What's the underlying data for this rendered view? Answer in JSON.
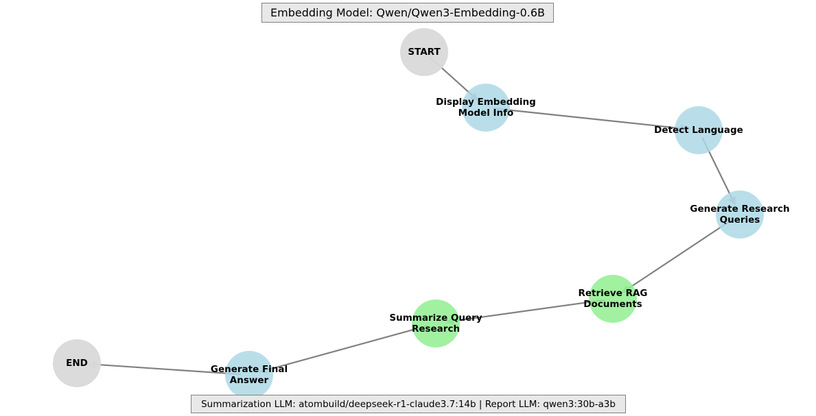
{
  "title": "Embedding Model: Qwen/Qwen3-Embedding-0.6B",
  "footer": "Summarization LLM: atombuild/deepseek-r1-claude3.7:14b | Report LLM: qwen3:30b-a3b",
  "colors": {
    "terminal": "#d9d9d9",
    "process": "#add8e6",
    "retrieval": "#90ee90",
    "edge": "#808080"
  },
  "nodes": [
    {
      "id": "start",
      "lines": [
        "START"
      ],
      "kind": "terminal"
    },
    {
      "id": "display-embedding",
      "lines": [
        "Display Embedding",
        "Model Info"
      ],
      "kind": "process"
    },
    {
      "id": "detect-language",
      "lines": [
        "Detect Language"
      ],
      "kind": "process"
    },
    {
      "id": "generate-research-queries",
      "lines": [
        "Generate Research",
        "Queries"
      ],
      "kind": "process"
    },
    {
      "id": "retrieve-rag",
      "lines": [
        "Retrieve RAG",
        "Documents"
      ],
      "kind": "retrieval"
    },
    {
      "id": "summarize-query",
      "lines": [
        "Summarize Query",
        "Research"
      ],
      "kind": "retrieval"
    },
    {
      "id": "generate-final",
      "lines": [
        "Generate Final",
        "Answer"
      ],
      "kind": "process"
    },
    {
      "id": "end",
      "lines": [
        "END"
      ],
      "kind": "terminal"
    }
  ],
  "edges": [
    {
      "from": "start",
      "to": "display-embedding"
    },
    {
      "from": "display-embedding",
      "to": "detect-language"
    },
    {
      "from": "detect-language",
      "to": "generate-research-queries"
    },
    {
      "from": "generate-research-queries",
      "to": "retrieve-rag"
    },
    {
      "from": "retrieve-rag",
      "to": "summarize-query"
    },
    {
      "from": "summarize-query",
      "to": "generate-final"
    },
    {
      "from": "generate-final",
      "to": "end"
    }
  ]
}
